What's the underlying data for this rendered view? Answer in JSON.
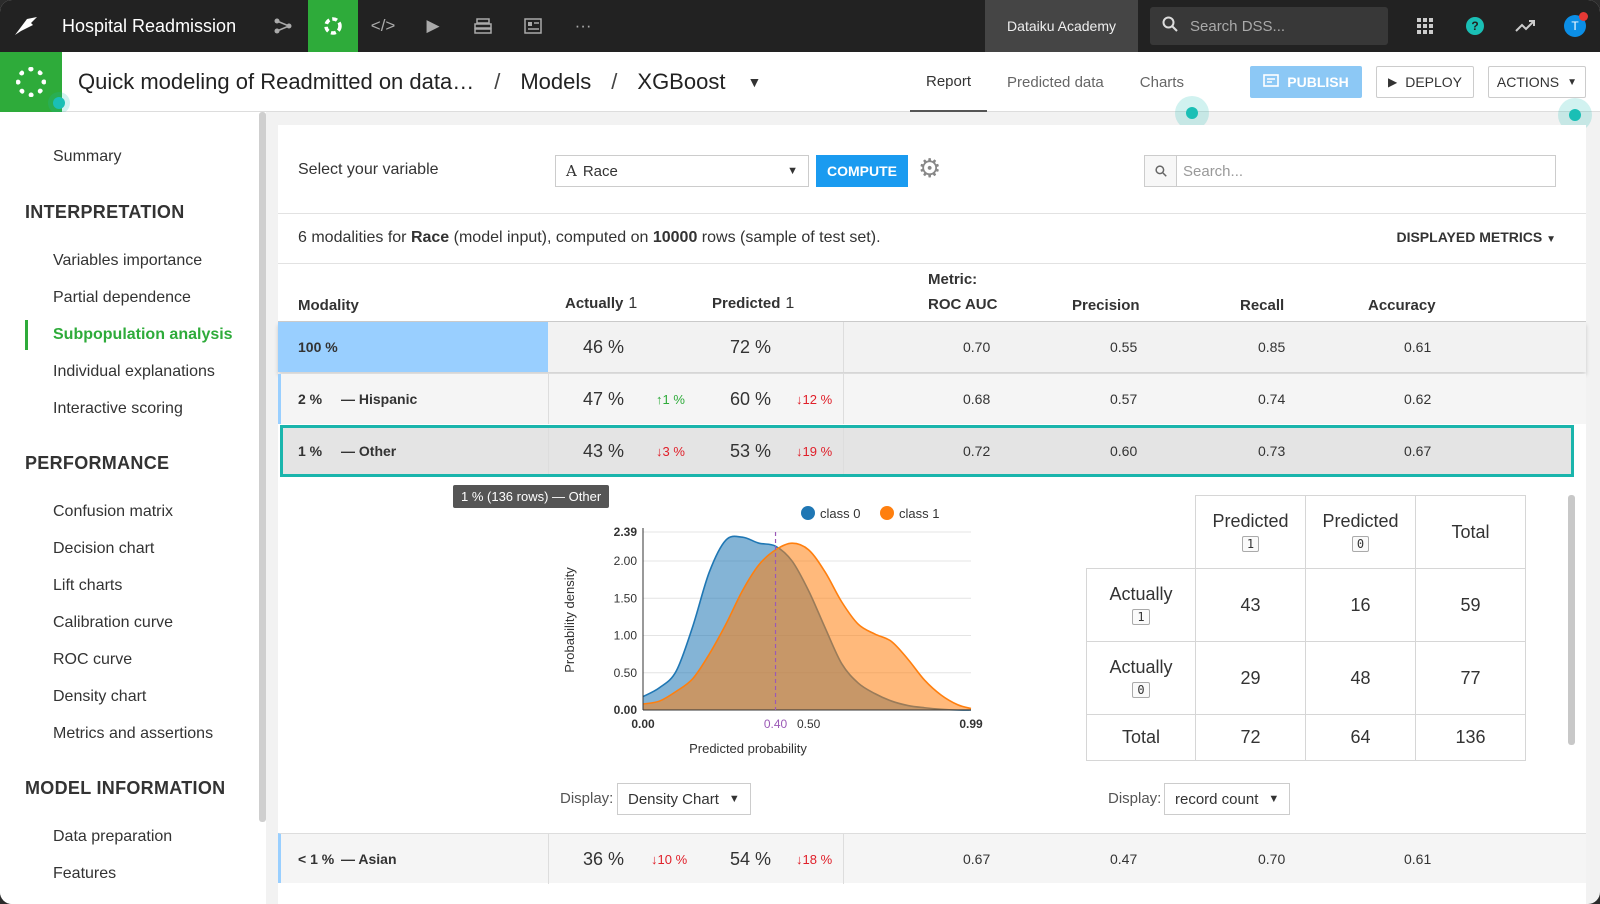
{
  "topnav": {
    "project_title": "Hospital Readmission",
    "academy_label": "Dataiku Academy",
    "search_placeholder": "Search DSS...",
    "help_glyph": "?",
    "avatar_initial": "T"
  },
  "header": {
    "crumb_analysis": "Quick modeling of Readmitted on data…",
    "crumb_models": "Models",
    "crumb_model": "XGBoost",
    "separator": "/",
    "tabs": [
      "Report",
      "Predicted data",
      "Charts"
    ],
    "publish_label": "PUBLISH",
    "deploy_label": "DEPLOY",
    "actions_label": "ACTIONS"
  },
  "sidebar": {
    "summary": "Summary",
    "section_interpretation": "INTERPRETATION",
    "interpretation_items": [
      "Variables importance",
      "Partial dependence",
      "Subpopulation analysis",
      "Individual explanations",
      "Interactive scoring"
    ],
    "section_performance": "PERFORMANCE",
    "performance_items": [
      "Confusion matrix",
      "Decision chart",
      "Lift charts",
      "Calibration curve",
      "ROC curve",
      "Density chart",
      "Metrics and assertions"
    ],
    "section_model_info": "MODEL INFORMATION",
    "model_info_items": [
      "Data preparation",
      "Features"
    ]
  },
  "controls": {
    "select_label": "Select your variable",
    "variable_icon": "A",
    "variable_value": "Race",
    "compute_label": "COMPUTE",
    "search_placeholder": "Search..."
  },
  "summary": {
    "prefix": "6 modalities for ",
    "variable": "Race",
    "middle": " (model input), computed on ",
    "rows": "10000",
    "suffix": " rows (sample of test set).",
    "displayed_metrics": "DISPLAYED METRICS"
  },
  "table": {
    "col_modality": "Modality",
    "col_actually": "Actually",
    "col_predicted": "Predicted",
    "class_tag": "1",
    "col_metric_prefix": "Metric:",
    "col_roc": "ROC AUC",
    "col_precision": "Precision",
    "col_recall": "Recall",
    "col_accuracy": "Accuracy",
    "rows": [
      {
        "pct": "100 %",
        "name": "",
        "actually": "46 %",
        "act_delta": "",
        "act_dir": "",
        "predicted": "72 %",
        "pred_delta": "",
        "pred_dir": "",
        "roc": "0.70",
        "precision": "0.55",
        "recall": "0.85",
        "accuracy": "0.61"
      },
      {
        "pct": "2 %",
        "name": "— Hispanic",
        "actually": "47 %",
        "act_delta": "↑1 %",
        "act_dir": "up",
        "predicted": "60 %",
        "pred_delta": "↓12 %",
        "pred_dir": "down",
        "roc": "0.68",
        "precision": "0.57",
        "recall": "0.74",
        "accuracy": "0.62"
      },
      {
        "pct": "1 %",
        "name": "— Other",
        "actually": "43 %",
        "act_delta": "↓3 %",
        "act_dir": "down",
        "predicted": "53 %",
        "pred_delta": "↓19 %",
        "pred_dir": "down",
        "roc": "0.72",
        "precision": "0.60",
        "recall": "0.73",
        "accuracy": "0.67"
      },
      {
        "pct": "< 1 %",
        "name": "— Asian",
        "actually": "36 %",
        "act_delta": "↓10 %",
        "act_dir": "down",
        "predicted": "54 %",
        "pred_delta": "↓18 %",
        "pred_dir": "down",
        "roc": "0.67",
        "precision": "0.47",
        "recall": "0.70",
        "accuracy": "0.61"
      }
    ]
  },
  "tooltip": "1 % (136 rows) — Other",
  "chart_data": {
    "type": "area",
    "title": "",
    "xlabel": "Predicted probability",
    "ylabel": "Probability density",
    "xlim": [
      0.0,
      0.99
    ],
    "ylim": [
      0.0,
      2.39
    ],
    "x_ticks": [
      "0.00",
      "0.50",
      "0.99"
    ],
    "y_ticks": [
      "0.00",
      "0.50",
      "1.00",
      "1.50",
      "2.00",
      "2.39"
    ],
    "threshold": 0.4,
    "threshold_label": "0.40",
    "legend_position": "top",
    "colors": {
      "class 0": "#1f77b4",
      "class 1": "#ff7f0e",
      "threshold": "#9b59b6"
    },
    "x": [
      0.0,
      0.05,
      0.1,
      0.15,
      0.2,
      0.25,
      0.3,
      0.35,
      0.4,
      0.45,
      0.5,
      0.55,
      0.6,
      0.65,
      0.7,
      0.75,
      0.8,
      0.85,
      0.9,
      0.95,
      0.99
    ],
    "series": [
      {
        "name": "class 0",
        "values": [
          0.18,
          0.3,
          0.52,
          1.12,
          1.85,
          2.28,
          2.32,
          2.24,
          2.2,
          2.0,
          1.6,
          1.1,
          0.62,
          0.36,
          0.22,
          0.12,
          0.06,
          0.03,
          0.01,
          0.0,
          0.0
        ]
      },
      {
        "name": "class 1",
        "values": [
          0.08,
          0.12,
          0.25,
          0.42,
          0.75,
          1.15,
          1.6,
          1.95,
          2.15,
          2.24,
          2.15,
          1.85,
          1.45,
          1.15,
          1.02,
          0.92,
          0.68,
          0.4,
          0.2,
          0.07,
          0.02
        ]
      }
    ]
  },
  "confusion": {
    "head_pred": "Predicted",
    "tag_1": "1",
    "tag_0": "0",
    "head_total": "Total",
    "row_actual": "Actually",
    "row_total": "Total",
    "a1_p1": "43",
    "a1_p0": "16",
    "a1_total": "59",
    "a0_p1": "29",
    "a0_p0": "48",
    "a0_total": "77",
    "t_p1": "72",
    "t_p0": "64",
    "t_total": "136"
  },
  "display": {
    "label": "Display:",
    "chart_mode": "Density Chart",
    "matrix_mode": "record count"
  }
}
